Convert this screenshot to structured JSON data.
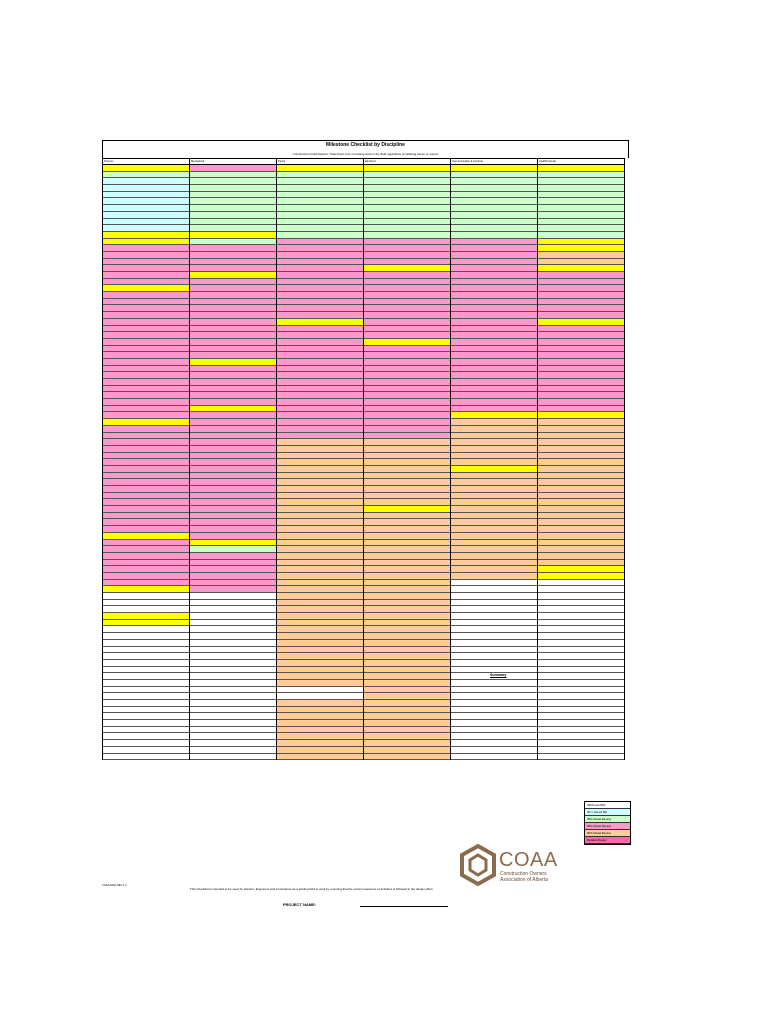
{
  "title": "Milestone Checklist by Discipline",
  "subtitle": "Construction Field Rework: Total direct cost of redoing work in the field regardless of initiating cause or source",
  "columns": [
    {
      "header": "Process",
      "cells": [
        "y",
        "g",
        "b",
        "b",
        "b",
        "b",
        "b",
        "b",
        "b",
        "b",
        "y",
        "y",
        "p",
        "p",
        "p",
        "p",
        "p",
        "p",
        "y",
        "p",
        "p",
        "p",
        "p",
        "p",
        "p",
        "p",
        "p",
        "p",
        "p",
        "p",
        "p",
        "p",
        "p",
        "p",
        "p",
        "p",
        "p",
        "p",
        "y",
        "p",
        "p",
        "p",
        "p",
        "p",
        "p",
        "p",
        "p",
        "p",
        "p",
        "p",
        "p",
        "p",
        "p",
        "p",
        "p",
        "y",
        "p",
        "p",
        "p",
        "p",
        "p",
        "p",
        "p",
        "y",
        "w",
        "w",
        "w",
        "y",
        "y",
        "w",
        "w",
        "w",
        "w",
        "w",
        "w",
        "w",
        "w",
        "w",
        "w",
        "w",
        "w",
        "w",
        "w",
        "w",
        "w",
        "w",
        "w",
        "w",
        "w"
      ]
    },
    {
      "header": "Mechanical",
      "cells": [
        "p",
        "g",
        "g",
        "g",
        "g",
        "g",
        "g",
        "g",
        "g",
        "g",
        "y",
        "g",
        "p",
        "p",
        "p",
        "p",
        "y",
        "p",
        "p",
        "p",
        "p",
        "p",
        "p",
        "p",
        "p",
        "p",
        "p",
        "p",
        "p",
        "y",
        "p",
        "p",
        "p",
        "p",
        "p",
        "p",
        "y",
        "p",
        "p",
        "p",
        "p",
        "p",
        "p",
        "p",
        "p",
        "p",
        "p",
        "p",
        "p",
        "p",
        "p",
        "p",
        "p",
        "p",
        "p",
        "p",
        "y",
        "g",
        "p",
        "p",
        "p",
        "p",
        "p",
        "p",
        "w",
        "w",
        "w",
        "w",
        "w",
        "w",
        "w",
        "w",
        "w",
        "w",
        "w",
        "w",
        "w",
        "w",
        "w",
        "w",
        "w",
        "w",
        "w",
        "w",
        "w",
        "w",
        "w",
        "w",
        "w"
      ]
    },
    {
      "header": "Piping",
      "cells": [
        "y",
        "g",
        "g",
        "g",
        "g",
        "g",
        "g",
        "g",
        "g",
        "g",
        "g",
        "p",
        "p",
        "p",
        "p",
        "p",
        "p",
        "p",
        "p",
        "p",
        "p",
        "p",
        "p",
        "y",
        "p",
        "p",
        "p",
        "p",
        "p",
        "p",
        "p",
        "p",
        "p",
        "p",
        "p",
        "p",
        "p",
        "p",
        "p",
        "p",
        "p",
        "o",
        "o",
        "o",
        "o",
        "o",
        "o",
        "o",
        "o",
        "o",
        "o",
        "o",
        "o",
        "o",
        "o",
        "o",
        "o",
        "o",
        "o",
        "o",
        "o",
        "o",
        "o",
        "o",
        "o",
        "o",
        "o",
        "o",
        "o",
        "o",
        "o",
        "o",
        "o",
        "o",
        "o",
        "o",
        "o",
        "o",
        "w",
        "w",
        "o",
        "o",
        "o",
        "o",
        "o",
        "o",
        "o",
        "o",
        "o"
      ]
    },
    {
      "header": "Electrical",
      "cells": [
        "y",
        "g",
        "g",
        "g",
        "g",
        "g",
        "g",
        "g",
        "g",
        "g",
        "g",
        "p",
        "p",
        "p",
        "p",
        "y",
        "p",
        "p",
        "p",
        "p",
        "p",
        "p",
        "p",
        "p",
        "p",
        "p",
        "y",
        "p",
        "p",
        "p",
        "p",
        "p",
        "p",
        "p",
        "p",
        "p",
        "p",
        "p",
        "p",
        "p",
        "p",
        "o",
        "o",
        "o",
        "o",
        "o",
        "o",
        "o",
        "o",
        "o",
        "o",
        "y",
        "o",
        "o",
        "o",
        "o",
        "o",
        "o",
        "o",
        "o",
        "o",
        "o",
        "o",
        "o",
        "o",
        "o",
        "o",
        "o",
        "o",
        "o",
        "o",
        "o",
        "o",
        "o",
        "o",
        "o",
        "o",
        "o",
        "o",
        "o",
        "o",
        "o",
        "o",
        "o",
        "o",
        "o",
        "o",
        "o",
        "o"
      ]
    },
    {
      "header": "Instrumentation & Controls",
      "cells": [
        "y",
        "g",
        "g",
        "g",
        "g",
        "g",
        "g",
        "g",
        "g",
        "g",
        "g",
        "p",
        "p",
        "p",
        "p",
        "p",
        "p",
        "p",
        "p",
        "p",
        "p",
        "p",
        "p",
        "p",
        "p",
        "p",
        "p",
        "p",
        "p",
        "p",
        "p",
        "p",
        "p",
        "p",
        "p",
        "p",
        "p",
        "y",
        "o",
        "o",
        "o",
        "o",
        "o",
        "o",
        "o",
        "y",
        "o",
        "o",
        "o",
        "o",
        "o",
        "o",
        "o",
        "o",
        "o",
        "o",
        "o",
        "o",
        "o",
        "o",
        "o",
        "o",
        "w",
        "w",
        "w",
        "w",
        "w",
        "w",
        "w",
        "w",
        "w",
        "w",
        "w",
        "w",
        "w",
        "w",
        "w",
        "w",
        "w",
        "w",
        "w",
        "w",
        "w",
        "w",
        "w",
        "w",
        "w",
        "w",
        "w"
      ]
    },
    {
      "header": "Civil/Structural",
      "cells": [
        "y",
        "g",
        "g",
        "g",
        "g",
        "g",
        "g",
        "g",
        "g",
        "g",
        "g",
        "y",
        "y",
        "o",
        "o",
        "y",
        "p",
        "p",
        "p",
        "p",
        "p",
        "p",
        "p",
        "y",
        "p",
        "p",
        "p",
        "p",
        "p",
        "p",
        "p",
        "p",
        "p",
        "p",
        "p",
        "p",
        "p",
        "y",
        "o",
        "o",
        "o",
        "o",
        "o",
        "o",
        "o",
        "o",
        "o",
        "o",
        "o",
        "o",
        "o",
        "o",
        "o",
        "o",
        "o",
        "o",
        "o",
        "o",
        "o",
        "o",
        "y",
        "y",
        "w",
        "w",
        "w",
        "w",
        "w",
        "w",
        "w",
        "w",
        "w",
        "w",
        "w",
        "w",
        "w",
        "w",
        "w",
        "w",
        "w",
        "w",
        "w",
        "w",
        "w",
        "w",
        "w",
        "w",
        "w",
        "w",
        "w"
      ]
    }
  ],
  "legend_title": "Summary",
  "legend": [
    {
      "label": "IFR/Issued Bid",
      "color": "#ffffff"
    },
    {
      "label": "IFC / Issued Bid",
      "color": "#ccffff"
    },
    {
      "label": "30% Model Review",
      "color": "#ccffcc"
    },
    {
      "label": "60% Model Review",
      "color": "#ff99cc"
    },
    {
      "label": "90% Model Review",
      "color": "#ffcc99"
    },
    {
      "label": "Detailed Design",
      "color": "#ff66aa"
    }
  ],
  "footer_note": "This Checklist is intended to be used by Owners, Engineers and Contractors as a starting field to work by ensuring that the correct sequence of activities is followed in the design effort.",
  "project_label": "PROJECT NAME:",
  "form_code": "COAA-MCD-REV 1.0",
  "logo": {
    "name": "COAA",
    "line1": "Construction Owners",
    "line2": "Association of Alberta"
  },
  "colors": {
    "yellow": "#ffff00",
    "green": "#ccffcc",
    "pink": "#ff99cc",
    "orange": "#ffcc99",
    "cyan": "#ccffff",
    "logo_brown": "#8b6b4e"
  }
}
